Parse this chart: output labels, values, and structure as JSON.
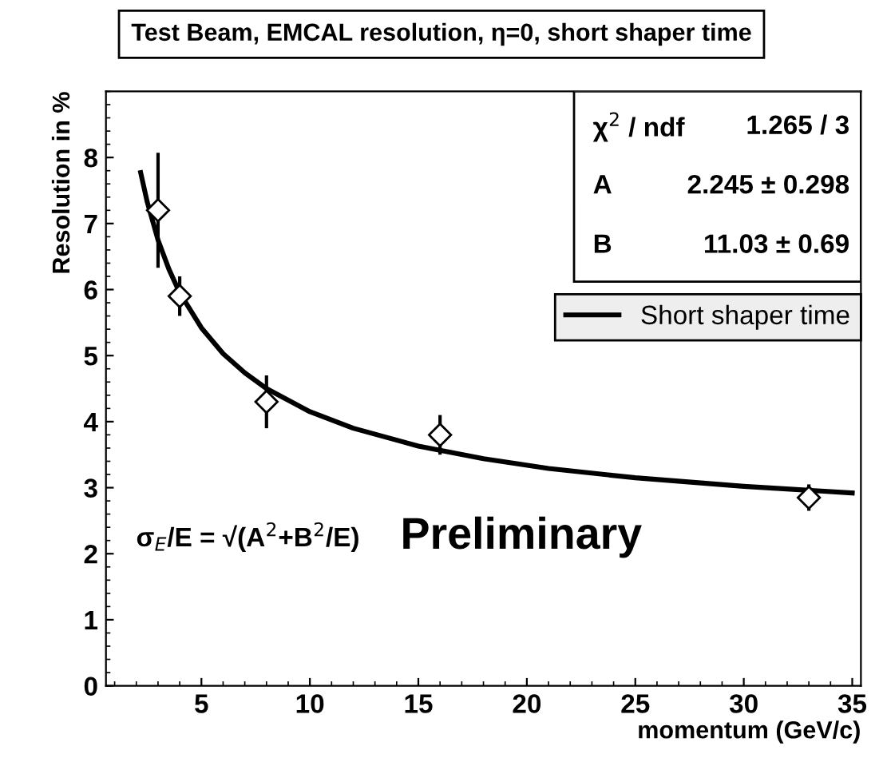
{
  "chart_data": {
    "type": "scatter",
    "title": "Test Beam, EMCAL resolution, η=0, short shaper time",
    "xlabel": "momentum (GeV/c)",
    "ylabel": "Resolution in %",
    "xlim": [
      0.6,
      35.4
    ],
    "xticks": [
      5,
      10,
      15,
      20,
      25,
      30,
      35
    ],
    "ylim": [
      0,
      9
    ],
    "yticks": [
      0,
      1,
      2,
      3,
      4,
      5,
      6,
      7,
      8
    ],
    "grid": false,
    "legend": "right",
    "series": [
      {
        "marker": "diamond",
        "color": "#000000",
        "x": [
          3,
          4,
          8,
          16,
          33
        ],
        "values": [
          7.2,
          5.9,
          4.3,
          3.8,
          2.85
        ],
        "errors": [
          0.87,
          0.3,
          0.4,
          0.3,
          0.2
        ]
      },
      {
        "type": "line",
        "name": "Short shaper time",
        "color": "#000000",
        "line_style": "solid",
        "marker": "none",
        "x": [
          2.2,
          2.5,
          3,
          3.5,
          4,
          5,
          6,
          7,
          8,
          10,
          12,
          15,
          18,
          21,
          25,
          30,
          35
        ],
        "values": [
          7.77,
          7.33,
          6.75,
          6.31,
          5.95,
          5.42,
          5.03,
          4.74,
          4.5,
          4.15,
          3.9,
          3.63,
          3.44,
          3.29,
          3.15,
          3.02,
          2.92
        ]
      }
    ],
    "annotations": [
      "χ$^{2}$ / ndf",
      "1.265 / 3",
      "A",
      "2.245 ± 0.298",
      "B",
      "11.03 ± 0.69",
      "σ$_{E}$/E = √(A$^{2}$+B$^{2}$/E)",
      "Preliminary"
    ]
  }
}
